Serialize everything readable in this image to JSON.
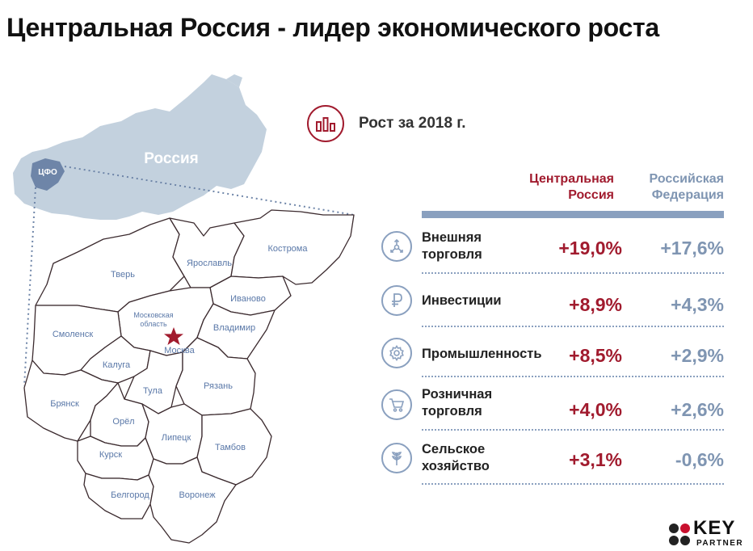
{
  "title": "Центральная Россия - лидер экономического роста",
  "map": {
    "country_label": "Россия",
    "district_label": "ЦФО",
    "regions": [
      "Тверь",
      "Ярославль",
      "Кострома",
      "Иваново",
      "Московская\nобласть",
      "Смоленск",
      "Москва",
      "Владимир",
      "Калуга",
      "Тула",
      "Рязань",
      "Брянск",
      "Орёл",
      "Липецк",
      "Тамбов",
      "Курск",
      "Белгород",
      "Воронеж"
    ]
  },
  "growth": {
    "heading": "Рост за 2018 г.",
    "columns": [
      "Центральная\nРоссия",
      "Российская\nФедерация"
    ],
    "rows": [
      {
        "label": "Внешняя\nторговля",
        "icon": "trade-arrows-icon",
        "cfo": "+19,0%",
        "rf": "+17,6%"
      },
      {
        "label": "Инвестиции",
        "icon": "ruble-icon",
        "cfo": "+8,9%",
        "rf": "+4,3%"
      },
      {
        "label": "Промышленность",
        "icon": "gear-icon",
        "cfo": "+8,5%",
        "rf": "+2,9%"
      },
      {
        "label": "Розничная\nторговля",
        "icon": "shopping-cart-icon",
        "cfo": "+4,0%",
        "rf": "+2,6%"
      },
      {
        "label": "Сельское\nхозяйство",
        "icon": "wheat-icon",
        "cfo": "+3,1%",
        "rf": "-0,6%"
      }
    ]
  },
  "colors": {
    "accent": "#a11b2e",
    "secondary": "#8aa0bf",
    "russia_fill": "#c3d1de",
    "cfo_fill": "#6e85a8"
  },
  "logo": {
    "word": "KEY",
    "sub": "PARTNER"
  }
}
